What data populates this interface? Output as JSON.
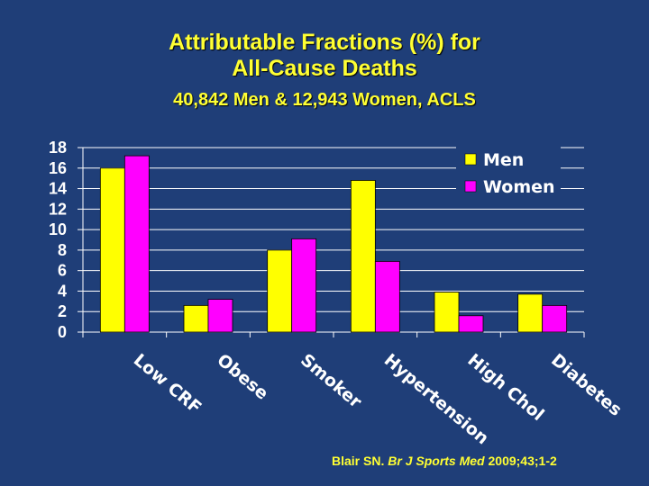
{
  "slide": {
    "title_line1": "Attributable Fractions (%) for",
    "title_line2": "All-Cause Deaths",
    "subtitle": "40,842 Men & 12,943 Women, ACLS",
    "citation_author": "Blair SN. ",
    "citation_journal": "Br J Sports Med",
    "citation_details": " 2009;43;1-2"
  },
  "colors": {
    "men": "#ffff00",
    "women": "#ff00ff",
    "text": "#ffffff",
    "background": "#1f3e78"
  },
  "chart_data": {
    "type": "bar",
    "title": "Attributable Fractions (%) for All-Cause Deaths",
    "categories": [
      "Low CRF",
      "Obese",
      "Smoker",
      "Hypertension",
      "High Chol",
      "Diabetes"
    ],
    "series": [
      {
        "name": "Men",
        "values": [
          16.0,
          2.6,
          8.0,
          14.8,
          3.9,
          3.7
        ]
      },
      {
        "name": "Women",
        "values": [
          17.2,
          3.2,
          9.1,
          6.9,
          1.6,
          2.6
        ]
      }
    ],
    "ylim": [
      0,
      18
    ],
    "yticks": [
      0,
      2,
      4,
      6,
      8,
      10,
      12,
      14,
      16,
      18
    ],
    "grid": true,
    "legend": "top-right"
  }
}
